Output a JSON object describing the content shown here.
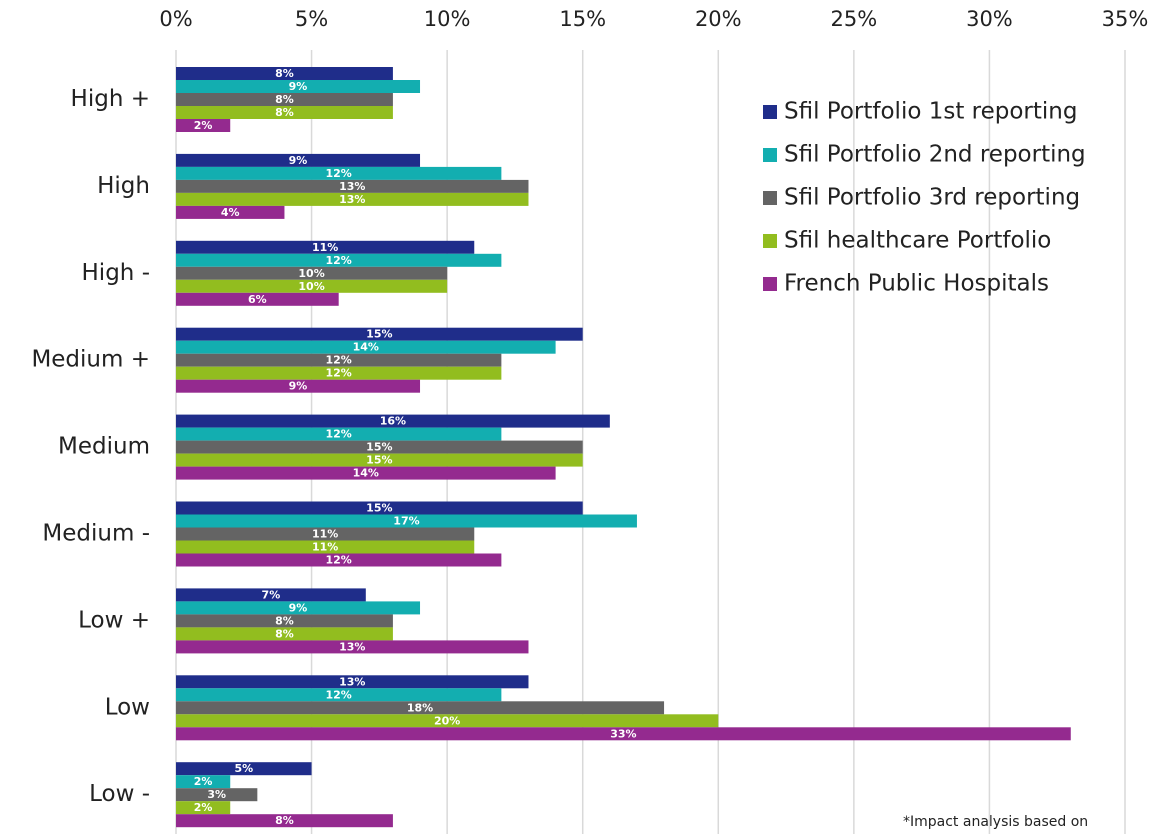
{
  "chart_data": {
    "type": "hbar",
    "categories": [
      "High +",
      "High",
      "High -",
      "Medium +",
      "Medium",
      "Medium -",
      "Low +",
      "Low",
      "Low -"
    ],
    "series": [
      {
        "name": "Sfil Portfolio 1st reporting",
        "color": "#1f2d8a",
        "values": [
          8,
          9,
          11,
          15,
          16,
          15,
          7,
          13,
          5
        ],
        "value_labels": [
          "8%",
          "9%",
          "11%",
          "15%",
          "16%",
          "15%",
          "7%",
          "13%",
          "5%"
        ]
      },
      {
        "name": "Sfil Portfolio 2nd reporting",
        "color": "#13aeb0",
        "values": [
          9,
          12,
          12,
          14,
          12,
          17,
          9,
          12,
          2
        ],
        "value_labels": [
          "9%",
          "12%",
          "12%",
          "14%",
          "12%",
          "17%",
          "9%",
          "12%",
          "2%"
        ]
      },
      {
        "name": "Sfil Portfolio 3rd reporting",
        "color": "#646464",
        "values": [
          8,
          13,
          10,
          12,
          15,
          11,
          8,
          18,
          3
        ],
        "value_labels": [
          "8%",
          "13%",
          "10%",
          "12%",
          "15%",
          "11%",
          "8%",
          "18%",
          "3%"
        ]
      },
      {
        "name": "Sfil healthcare Portfolio",
        "color": "#92bd1f",
        "values": [
          8,
          13,
          10,
          12,
          15,
          11,
          8,
          20,
          2
        ],
        "value_labels": [
          "8%",
          "13%",
          "10%",
          "12%",
          "15%",
          "11%",
          "8%",
          "20%",
          "2%"
        ]
      },
      {
        "name": "French Public Hospitals",
        "color": "#942a8f",
        "values": [
          2,
          4,
          6,
          9,
          14,
          12,
          13,
          33,
          8
        ],
        "value_labels": [
          "2%",
          "4%",
          "6%",
          "9%",
          "14%",
          "12%",
          "13%",
          "33%",
          "8%"
        ]
      }
    ],
    "xlim": [
      0,
      35
    ],
    "xticks": [
      {
        "value": 0,
        "label": "0%"
      },
      {
        "value": 5,
        "label": "5%"
      },
      {
        "value": 10,
        "label": "10%"
      },
      {
        "value": 15,
        "label": "15%"
      },
      {
        "value": 20,
        "label": "20%"
      },
      {
        "value": 25,
        "label": "25%"
      },
      {
        "value": 30,
        "label": "30%"
      },
      {
        "value": 35,
        "label": "35%"
      }
    ],
    "grid": true,
    "legend": "upper right",
    "annotation": "*Impact analysis based on"
  }
}
